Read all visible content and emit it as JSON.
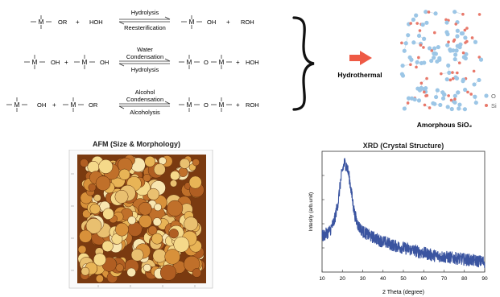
{
  "reactions": [
    {
      "left": [
        "OR",
        "+",
        "HOH"
      ],
      "arrow_top": "Hydrolysis",
      "arrow_bottom": "Reesterification",
      "right": [
        "OH",
        "+",
        "ROH"
      ]
    },
    {
      "left": [
        "OH",
        "+",
        "OH"
      ],
      "arrow_top_1": "Water",
      "arrow_top_2": "Condensation",
      "arrow_bottom": "Hydrolysis",
      "right": [
        "O",
        "+",
        "HOH"
      ]
    },
    {
      "left": [
        "OH",
        "+",
        "OR"
      ],
      "arrow_top_1": "Alcohol",
      "arrow_top_2": "Condensation",
      "arrow_bottom": "Alcoholysis",
      "right": [
        "O",
        "+",
        "ROH"
      ]
    }
  ],
  "metal_symbol": "M",
  "process_label": "Hydrothermal",
  "product": {
    "label": "Amorphous SiO₂",
    "legend": [
      {
        "label": "O",
        "color": "#9cc6e6"
      },
      {
        "label": "Si",
        "color": "#e8786a"
      }
    ]
  },
  "colors": {
    "arrow": "#ee5a45",
    "oxygen": "#9cc6e6",
    "silicon": "#e8786a",
    "xrd_line": "#3a54a0"
  },
  "afm": {
    "title": "AFM (Size & Morphology)"
  },
  "xrd": {
    "title": "XRD (Crystal Structure)"
  },
  "chart_data": {
    "type": "line",
    "title": "XRD (Crystal Structure)",
    "xlabel": "2 Theta (degree)",
    "ylabel": "Intesity (arb.unit)",
    "xlim": [
      10,
      90
    ],
    "xticks": [
      10,
      20,
      30,
      40,
      50,
      60,
      70,
      80,
      90
    ],
    "grid": false,
    "series": [
      {
        "x": [
          10,
          12,
          14,
          16,
          18,
          19,
          20,
          21,
          22,
          23,
          24,
          25,
          26,
          27,
          28,
          30,
          32,
          34,
          36,
          38,
          40,
          42,
          45,
          50,
          55,
          60,
          65,
          70,
          75,
          80,
          85,
          90
        ],
        "values": [
          28,
          30,
          33,
          40,
          56,
          70,
          80,
          86,
          84,
          78,
          68,
          56,
          46,
          40,
          36,
          32,
          30,
          28,
          27,
          25,
          24,
          23,
          21,
          19,
          17,
          15,
          13,
          12,
          11,
          10,
          9,
          8
        ]
      }
    ]
  }
}
